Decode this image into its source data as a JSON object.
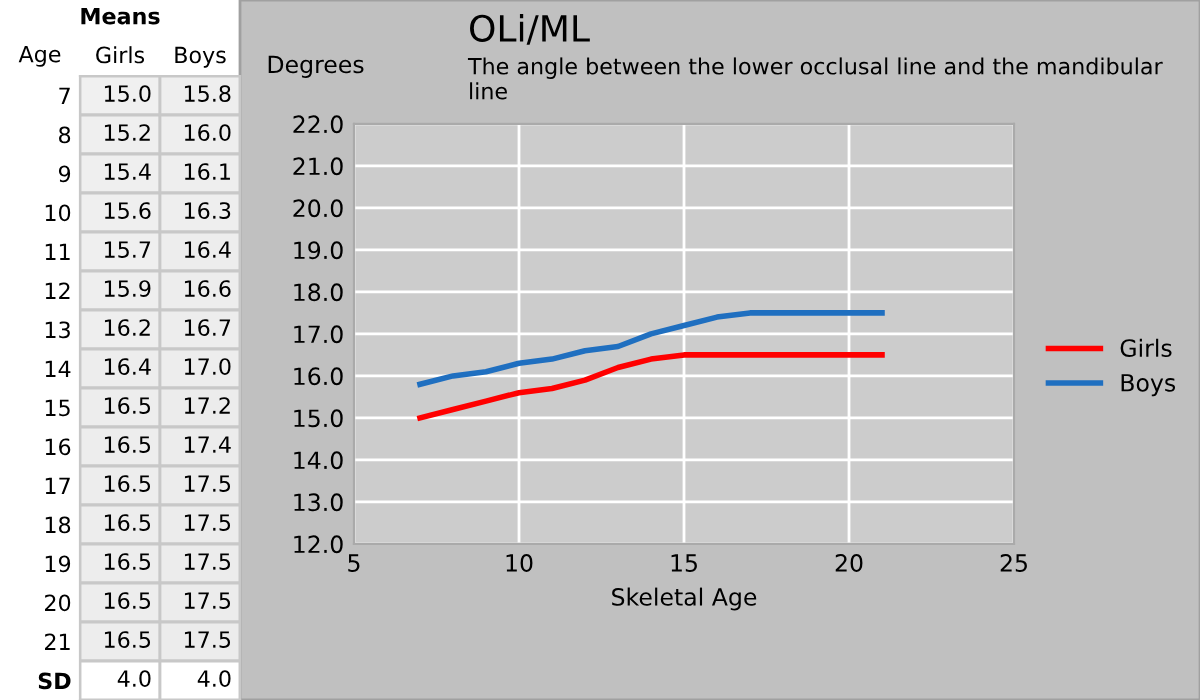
{
  "chart_data": [
    {
      "type": "heatmap",
      "title": "Means",
      "ylabel": "Age",
      "categories": [
        "Girls",
        "Boys"
      ],
      "y_categories": [
        "7",
        "8",
        "9",
        "10",
        "11",
        "12",
        "13",
        "14",
        "15",
        "16",
        "17",
        "18",
        "19",
        "20",
        "21",
        "SD"
      ],
      "cells": [
        [
          15.0,
          15.8
        ],
        [
          15.2,
          16.0
        ],
        [
          15.4,
          16.1
        ],
        [
          15.6,
          16.3
        ],
        [
          15.7,
          16.4
        ],
        [
          15.9,
          16.6
        ],
        [
          16.2,
          16.7
        ],
        [
          16.4,
          17.0
        ],
        [
          16.5,
          17.2
        ],
        [
          16.5,
          17.4
        ],
        [
          16.5,
          17.5
        ],
        [
          16.5,
          17.5
        ],
        [
          16.5,
          17.5
        ],
        [
          16.5,
          17.5
        ],
        [
          16.5,
          17.5
        ],
        [
          4.0,
          4.0
        ]
      ],
      "cell_labels": [
        [
          "15.0",
          "15.8"
        ],
        [
          "15.2",
          "16.0"
        ],
        [
          "15.4",
          "16.1"
        ],
        [
          "15.6",
          "16.3"
        ],
        [
          "15.7",
          "16.4"
        ],
        [
          "15.9",
          "16.6"
        ],
        [
          "16.2",
          "16.7"
        ],
        [
          "16.4",
          "17.0"
        ],
        [
          "16.5",
          "17.2"
        ],
        [
          "16.5",
          "17.4"
        ],
        [
          "16.5",
          "17.5"
        ],
        [
          "16.5",
          "17.5"
        ],
        [
          "16.5",
          "17.5"
        ],
        [
          "16.5",
          "17.5"
        ],
        [
          "16.5",
          "17.5"
        ],
        [
          "4.0",
          "4.0"
        ]
      ]
    },
    {
      "type": "line",
      "title": "OLi/ML",
      "subtitle": "The angle between the lower occlusal line and the mandibular line",
      "xlabel": "Skeletal Age",
      "ylabel": "Degrees",
      "x": [
        7,
        8,
        9,
        10,
        11,
        12,
        13,
        14,
        15,
        16,
        17,
        18,
        19,
        20,
        21
      ],
      "series": [
        {
          "name": "Girls",
          "color": "#ff0000",
          "values": [
            15.0,
            15.2,
            15.4,
            15.6,
            15.7,
            15.9,
            16.2,
            16.4,
            16.5,
            16.5,
            16.5,
            16.5,
            16.5,
            16.5,
            16.5
          ]
        },
        {
          "name": "Boys",
          "color": "#1f6fc0",
          "values": [
            15.8,
            16.0,
            16.1,
            16.3,
            16.4,
            16.6,
            16.7,
            17.0,
            17.2,
            17.4,
            17.5,
            17.5,
            17.5,
            17.5,
            17.5
          ]
        }
      ],
      "xlim": [
        5,
        25
      ],
      "xticks": [
        5,
        10,
        15,
        20,
        25
      ],
      "ylim": [
        12,
        22
      ],
      "yticks": [
        {
          "value": 12,
          "label": "12.0"
        },
        {
          "value": 13,
          "label": "13.0"
        },
        {
          "value": 14,
          "label": "14.0"
        },
        {
          "value": 15,
          "label": "15.0"
        },
        {
          "value": 16,
          "label": "16.0"
        },
        {
          "value": 17,
          "label": "17.0"
        },
        {
          "value": 18,
          "label": "18.0"
        },
        {
          "value": 19,
          "label": "19.0"
        },
        {
          "value": 20,
          "label": "20.0"
        },
        {
          "value": 21,
          "label": "21.0"
        },
        {
          "value": 22,
          "label": "22.0"
        }
      ],
      "grid": true,
      "legend": "right",
      "marker": "none",
      "line_style": "solid"
    }
  ]
}
